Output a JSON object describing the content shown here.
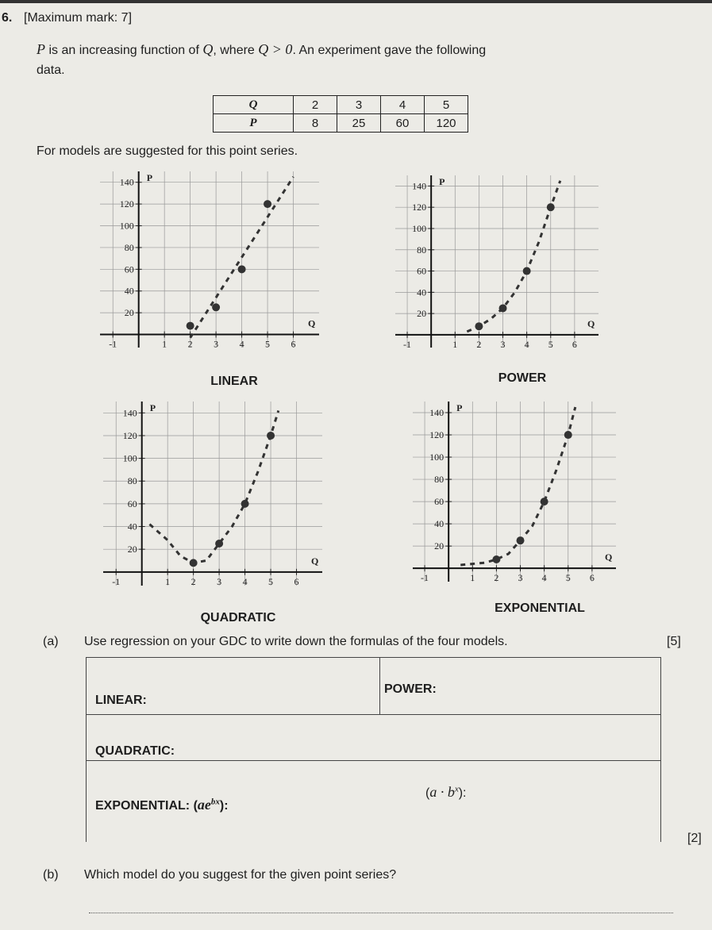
{
  "question": {
    "number": "6.",
    "marks": "[Maximum mark: 7]",
    "intro": [
      "P",
      "is an increasing function of",
      "Q",
      ", where",
      "Q > 0",
      ". An experiment gave the following",
      "data."
    ],
    "table": {
      "rows": [
        [
          "Q",
          "2",
          "3",
          "4",
          "5"
        ],
        [
          "P",
          "8",
          "25",
          "60",
          "120"
        ]
      ]
    },
    "models_text": "For models are suggested for this point series."
  },
  "chart_data": [
    {
      "type": "line",
      "title": "LINEAR",
      "x_label": "Q",
      "y_label": "P",
      "xlim": [
        -1.5,
        7
      ],
      "ylim": [
        -12,
        150
      ],
      "xticks": [
        -1,
        1,
        2,
        3,
        4,
        5,
        6
      ],
      "yticks": [
        20,
        40,
        60,
        80,
        100,
        120,
        140
      ],
      "grid": true,
      "series": [
        {
          "x": [
            2,
            6
          ],
          "values": [
            -3,
            145
          ],
          "color": "#333333",
          "style": "dashed"
        },
        {
          "x": [
            2,
            3,
            4,
            5
          ],
          "values": [
            8,
            25,
            60,
            120
          ],
          "color": "#333333",
          "style": "dots"
        }
      ]
    },
    {
      "type": "line",
      "title": "POWER",
      "x_label": "Q",
      "y_label": "P",
      "xlim": [
        -1.5,
        7
      ],
      "ylim": [
        -12,
        150
      ],
      "xticks": [
        -1,
        1,
        2,
        3,
        4,
        5,
        6
      ],
      "yticks": [
        20,
        40,
        60,
        80,
        100,
        120,
        140
      ],
      "grid": true,
      "series": [
        {
          "x": [
            1.5,
            2,
            2.5,
            3,
            3.5,
            4,
            4.5,
            5,
            5.4
          ],
          "values": [
            3,
            8,
            15,
            25,
            40,
            60,
            87,
            120,
            145
          ],
          "color": "#333333",
          "style": "dashed"
        },
        {
          "x": [
            2,
            3,
            4,
            5
          ],
          "values": [
            8,
            25,
            60,
            120
          ],
          "color": "#333333",
          "style": "dots"
        }
      ]
    },
    {
      "type": "line",
      "title": "QUADRATIC",
      "x_label": "Q",
      "y_label": "P",
      "xlim": [
        -1.5,
        7
      ],
      "ylim": [
        -12,
        150
      ],
      "xticks": [
        -1,
        1,
        2,
        3,
        4,
        5,
        6
      ],
      "yticks": [
        20,
        40,
        60,
        80,
        100,
        120,
        140
      ],
      "grid": true,
      "series": [
        {
          "x": [
            0.3,
            1,
            1.5,
            2,
            2.5,
            3,
            3.5,
            4,
            4.5,
            5,
            5.3
          ],
          "values": [
            42,
            28,
            14,
            8,
            10,
            25,
            40,
            60,
            88,
            120,
            142
          ],
          "color": "#333333",
          "style": "dashed"
        },
        {
          "x": [
            2,
            3,
            4,
            5
          ],
          "values": [
            8,
            25,
            60,
            120
          ],
          "color": "#333333",
          "style": "dots"
        }
      ]
    },
    {
      "type": "line",
      "title": "EXPONENTIAL",
      "x_label": "Q",
      "y_label": "P",
      "xlim": [
        -1.5,
        7
      ],
      "ylim": [
        -12,
        150
      ],
      "xticks": [
        -1,
        1,
        2,
        3,
        4,
        5,
        6
      ],
      "yticks": [
        20,
        40,
        60,
        80,
        100,
        120,
        140
      ],
      "grid": true,
      "series": [
        {
          "x": [
            0.5,
            1,
            1.5,
            2,
            2.5,
            3,
            3.5,
            4,
            4.5,
            5,
            5.3
          ],
          "values": [
            3,
            4,
            5,
            8,
            13,
            25,
            38,
            60,
            88,
            120,
            145
          ],
          "color": "#333333",
          "style": "dashed"
        },
        {
          "x": [
            2,
            3,
            4,
            5
          ],
          "values": [
            8,
            25,
            60,
            120
          ],
          "color": "#333333",
          "style": "dots"
        }
      ]
    }
  ],
  "part_a": {
    "label": "(a)",
    "text": "Use regression on your GDC to write down the formulas of the four models.",
    "marks": "[5]",
    "linear": "LINEAR:",
    "power": "POWER:",
    "quadratic": "QUADRATIC:",
    "exponential": [
      "EXPONENTIAL:",
      "(",
      "ae",
      "bx",
      "):"
    ],
    "alt": [
      "(",
      "a · b",
      "x",
      "):"
    ]
  },
  "part_b": {
    "label": "(b)",
    "text": "Which model do you suggest for the given point series?",
    "marks": "[2]"
  }
}
